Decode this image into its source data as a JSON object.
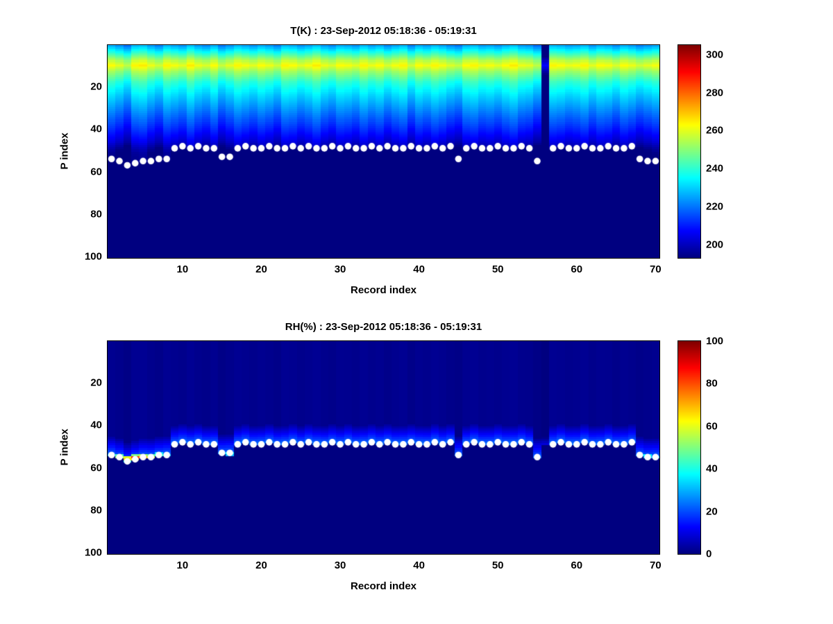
{
  "figure": {
    "background": "#ffffff",
    "axis_color": "#000000",
    "marker_color": "#ffffff"
  },
  "chart_data": [
    {
      "type": "heatmap",
      "title": "T(K) : 23-Sep-2012 05:18:36 - 05:19:31",
      "xlabel": "Record index",
      "ylabel": "P index",
      "x_range": [
        1,
        70
      ],
      "y_range": [
        1,
        100
      ],
      "y_dir": "reverse",
      "x_ticks": [
        10,
        20,
        30,
        40,
        50,
        60,
        70
      ],
      "y_ticks": [
        20,
        40,
        60,
        80,
        100
      ],
      "colormap": "jet",
      "clim": [
        193,
        305
      ],
      "colorbar_ticks": [
        200,
        220,
        240,
        260,
        280,
        300
      ],
      "value_model": "profile_surface",
      "profile_p": [
        1,
        4,
        8,
        10,
        13,
        18,
        24,
        32,
        40,
        46,
        49,
        51,
        53,
        100
      ],
      "profile_t": [
        226,
        238,
        256,
        262,
        252,
        240,
        231,
        221,
        211,
        203,
        197,
        194,
        193,
        193
      ],
      "below_surface_value": 193,
      "offset_scale": 1,
      "column_offsets": [
        1,
        -2,
        -6,
        2,
        3,
        -1,
        -4,
        2,
        0,
        -2,
        3,
        -1,
        -3,
        1,
        -5,
        -2,
        2,
        0,
        -2,
        1,
        -1,
        -4,
        2,
        1,
        -2,
        0,
        3,
        -1,
        -3,
        1,
        0,
        -2,
        2,
        -1,
        1,
        -3,
        0,
        2,
        -4,
        1,
        -1,
        2,
        0,
        -3,
        -5,
        1,
        2,
        -1,
        0,
        -2,
        1,
        3,
        -1,
        -2,
        -6,
        0,
        2,
        1,
        -1,
        0,
        2,
        -2,
        1,
        0,
        -3,
        1,
        -1,
        -4,
        -2,
        0
      ],
      "anomaly_columns": [
        {
          "record": 56,
          "delta": -55,
          "p_extent": 50
        }
      ],
      "surface_default": 49,
      "surface_p": [
        54,
        55,
        57,
        56,
        55,
        55,
        54,
        54,
        49,
        48,
        49,
        48,
        49,
        49,
        53,
        53,
        49,
        48,
        49,
        49,
        48,
        49,
        49,
        48,
        49,
        48,
        49,
        49,
        48,
        49,
        48,
        49,
        49,
        48,
        49,
        48,
        49,
        49,
        48,
        49,
        49,
        48,
        49,
        48,
        54,
        49,
        48,
        49,
        49,
        48,
        49,
        49,
        48,
        49,
        55,
        null,
        49,
        48,
        49,
        49,
        48,
        49,
        49,
        48,
        49,
        49,
        48,
        54,
        55,
        55
      ],
      "marker": {
        "shape": "circle",
        "color": "#ffffff",
        "size": 4.8
      }
    },
    {
      "type": "heatmap",
      "title": "RH(%) : 23-Sep-2012 05:18:36 - 05:19:31",
      "xlabel": "Record index",
      "ylabel": "P index",
      "x_range": [
        1,
        70
      ],
      "y_range": [
        1,
        100
      ],
      "y_dir": "reverse",
      "x_ticks": [
        10,
        20,
        30,
        40,
        50,
        60,
        70
      ],
      "y_ticks": [
        20,
        40,
        60,
        80,
        100
      ],
      "colormap": "jet",
      "clim": [
        0,
        100
      ],
      "colorbar_ticks": [
        0,
        20,
        40,
        60,
        80,
        100
      ],
      "value_model": "surface_glow",
      "base_value": 1.5,
      "glow_width": 9,
      "glow_peak": 22,
      "below_surface_value": 0,
      "offset_scale": 0.15,
      "column_offsets": [
        1,
        -2,
        -6,
        2,
        3,
        -1,
        -4,
        2,
        0,
        -2,
        3,
        -1,
        -3,
        1,
        -5,
        -2,
        2,
        0,
        -2,
        1,
        -1,
        -4,
        2,
        1,
        -2,
        0,
        3,
        -1,
        -3,
        1,
        0,
        -2,
        2,
        -1,
        1,
        -3,
        0,
        2,
        -4,
        1,
        -1,
        2,
        0,
        -3,
        -5,
        1,
        2,
        -1,
        0,
        -2,
        1,
        3,
        -1,
        -2,
        -6,
        0,
        2,
        1,
        -1,
        0,
        2,
        -2,
        1,
        0,
        -3,
        1,
        -1,
        -4,
        -2,
        0
      ],
      "anomaly_columns": [
        {
          "record": 56,
          "delta": -15,
          "p_extent": 50
        }
      ],
      "surface_default": 49,
      "surface_p": [
        54,
        55,
        57,
        56,
        55,
        55,
        54,
        54,
        49,
        48,
        49,
        48,
        49,
        49,
        53,
        53,
        49,
        48,
        49,
        49,
        48,
        49,
        49,
        48,
        49,
        48,
        49,
        49,
        48,
        49,
        48,
        49,
        49,
        48,
        49,
        48,
        49,
        49,
        48,
        49,
        49,
        48,
        49,
        48,
        54,
        49,
        48,
        49,
        49,
        48,
        49,
        49,
        48,
        49,
        55,
        null,
        49,
        48,
        49,
        49,
        48,
        49,
        49,
        48,
        49,
        49,
        48,
        54,
        55,
        55
      ],
      "patches": [
        {
          "r": 1,
          "p": 54,
          "v": 28
        },
        {
          "r": 2,
          "p": 54,
          "v": 45
        },
        {
          "r": 2,
          "p": 55,
          "v": 52
        },
        {
          "r": 3,
          "p": 55,
          "v": 60
        },
        {
          "r": 3,
          "p": 56,
          "v": 68
        },
        {
          "r": 3,
          "p": 57,
          "v": 40
        },
        {
          "r": 4,
          "p": 54,
          "v": 50
        },
        {
          "r": 4,
          "p": 55,
          "v": 85
        },
        {
          "r": 4,
          "p": 56,
          "v": 62
        },
        {
          "r": 5,
          "p": 54,
          "v": 55
        },
        {
          "r": 5,
          "p": 55,
          "v": 72
        },
        {
          "r": 6,
          "p": 54,
          "v": 48
        },
        {
          "r": 6,
          "p": 55,
          "v": 60
        },
        {
          "r": 7,
          "p": 53,
          "v": 35
        },
        {
          "r": 7,
          "p": 54,
          "v": 42
        },
        {
          "r": 8,
          "p": 54,
          "v": 30
        },
        {
          "r": 15,
          "p": 53,
          "v": 28
        },
        {
          "r": 16,
          "p": 53,
          "v": 36
        },
        {
          "r": 16,
          "p": 54,
          "v": 30
        },
        {
          "r": 45,
          "p": 54,
          "v": 25
        },
        {
          "r": 55,
          "p": 55,
          "v": 22
        },
        {
          "r": 68,
          "p": 54,
          "v": 28
        },
        {
          "r": 69,
          "p": 54,
          "v": 38
        },
        {
          "r": 69,
          "p": 55,
          "v": 32
        },
        {
          "r": 70,
          "p": 55,
          "v": 30
        }
      ],
      "marker": {
        "shape": "circle",
        "color": "#ffffff",
        "size": 4.8
      }
    }
  ]
}
